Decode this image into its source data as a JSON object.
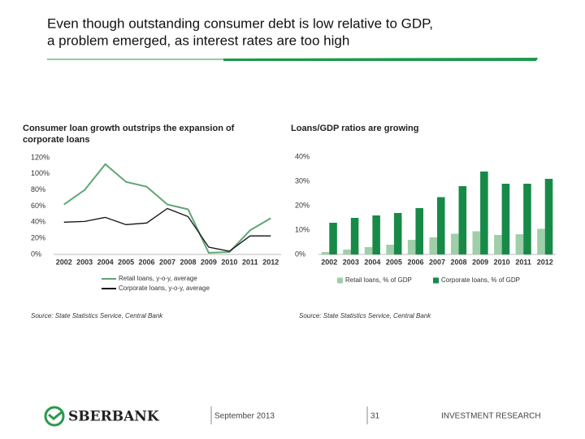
{
  "header": {
    "title_lines": [
      "Even though outstanding consumer debt is low relative to GDP,",
      "a problem emerged, as interest rates are too high"
    ]
  },
  "chart_data": [
    {
      "type": "line",
      "title_lines": [
        "Consumer loan growth outstrips the expansion of",
        "corporate loans"
      ],
      "categories": [
        "2002",
        "2003",
        "2004",
        "2005",
        "2006",
        "2007",
        "2008",
        "2009",
        "2010",
        "2011",
        "2012"
      ],
      "series": [
        {
          "name": "Retail loans, y-o-y, average",
          "color": "#5fa675",
          "values": [
            62,
            80,
            112,
            90,
            84,
            62,
            56,
            2,
            3,
            30,
            45
          ]
        },
        {
          "name": "Corporate loans, y-o-y, average",
          "color": "#111111",
          "values": [
            40,
            41,
            46,
            37,
            39,
            57,
            47,
            9,
            4,
            23,
            23
          ]
        }
      ],
      "ylim": [
        0,
        120
      ],
      "yticks": [
        {
          "value": 0,
          "label": "0%"
        },
        {
          "value": 20,
          "label": "20%"
        },
        {
          "value": 40,
          "label": "40%"
        },
        {
          "value": 60,
          "label": "60%"
        },
        {
          "value": 80,
          "label": "80%"
        },
        {
          "value": 100,
          "label": "100%"
        },
        {
          "value": 120,
          "label": "120%"
        }
      ],
      "grid": false,
      "legend": "bottom",
      "source": "Source: State Statistics Service, Central Bank"
    },
    {
      "type": "bar",
      "title_lines": [
        "Loans/GDP ratios are growing"
      ],
      "categories": [
        "2002",
        "2003",
        "2004",
        "2005",
        "2006",
        "2007",
        "2008",
        "2009",
        "2010",
        "2011",
        "2012"
      ],
      "series": [
        {
          "name": "Retail loans, % of GDP",
          "color": "#9fcfa8",
          "values": [
            1,
            2,
            3,
            4,
            6,
            7,
            8.5,
            9.5,
            8,
            8.3,
            10.5
          ]
        },
        {
          "name": "Corporate loans, % of GDP",
          "color": "#188a48",
          "values": [
            13,
            15,
            16,
            17,
            19,
            23.5,
            28,
            34,
            29,
            29,
            31
          ]
        }
      ],
      "ylim": [
        0,
        40
      ],
      "yticks": [
        {
          "value": 0,
          "label": "0%"
        },
        {
          "value": 10,
          "label": "10%"
        },
        {
          "value": 20,
          "label": "20%"
        },
        {
          "value": 30,
          "label": "30%"
        },
        {
          "value": 40,
          "label": "40%"
        }
      ],
      "grid": false,
      "legend": "bottom",
      "source": "Source: State Statistics Service, Central Bank"
    }
  ],
  "footer": {
    "brand": "SBERBANK",
    "date": "September 2013",
    "page": "31",
    "division": "INVESTMENT RESEARCH"
  }
}
